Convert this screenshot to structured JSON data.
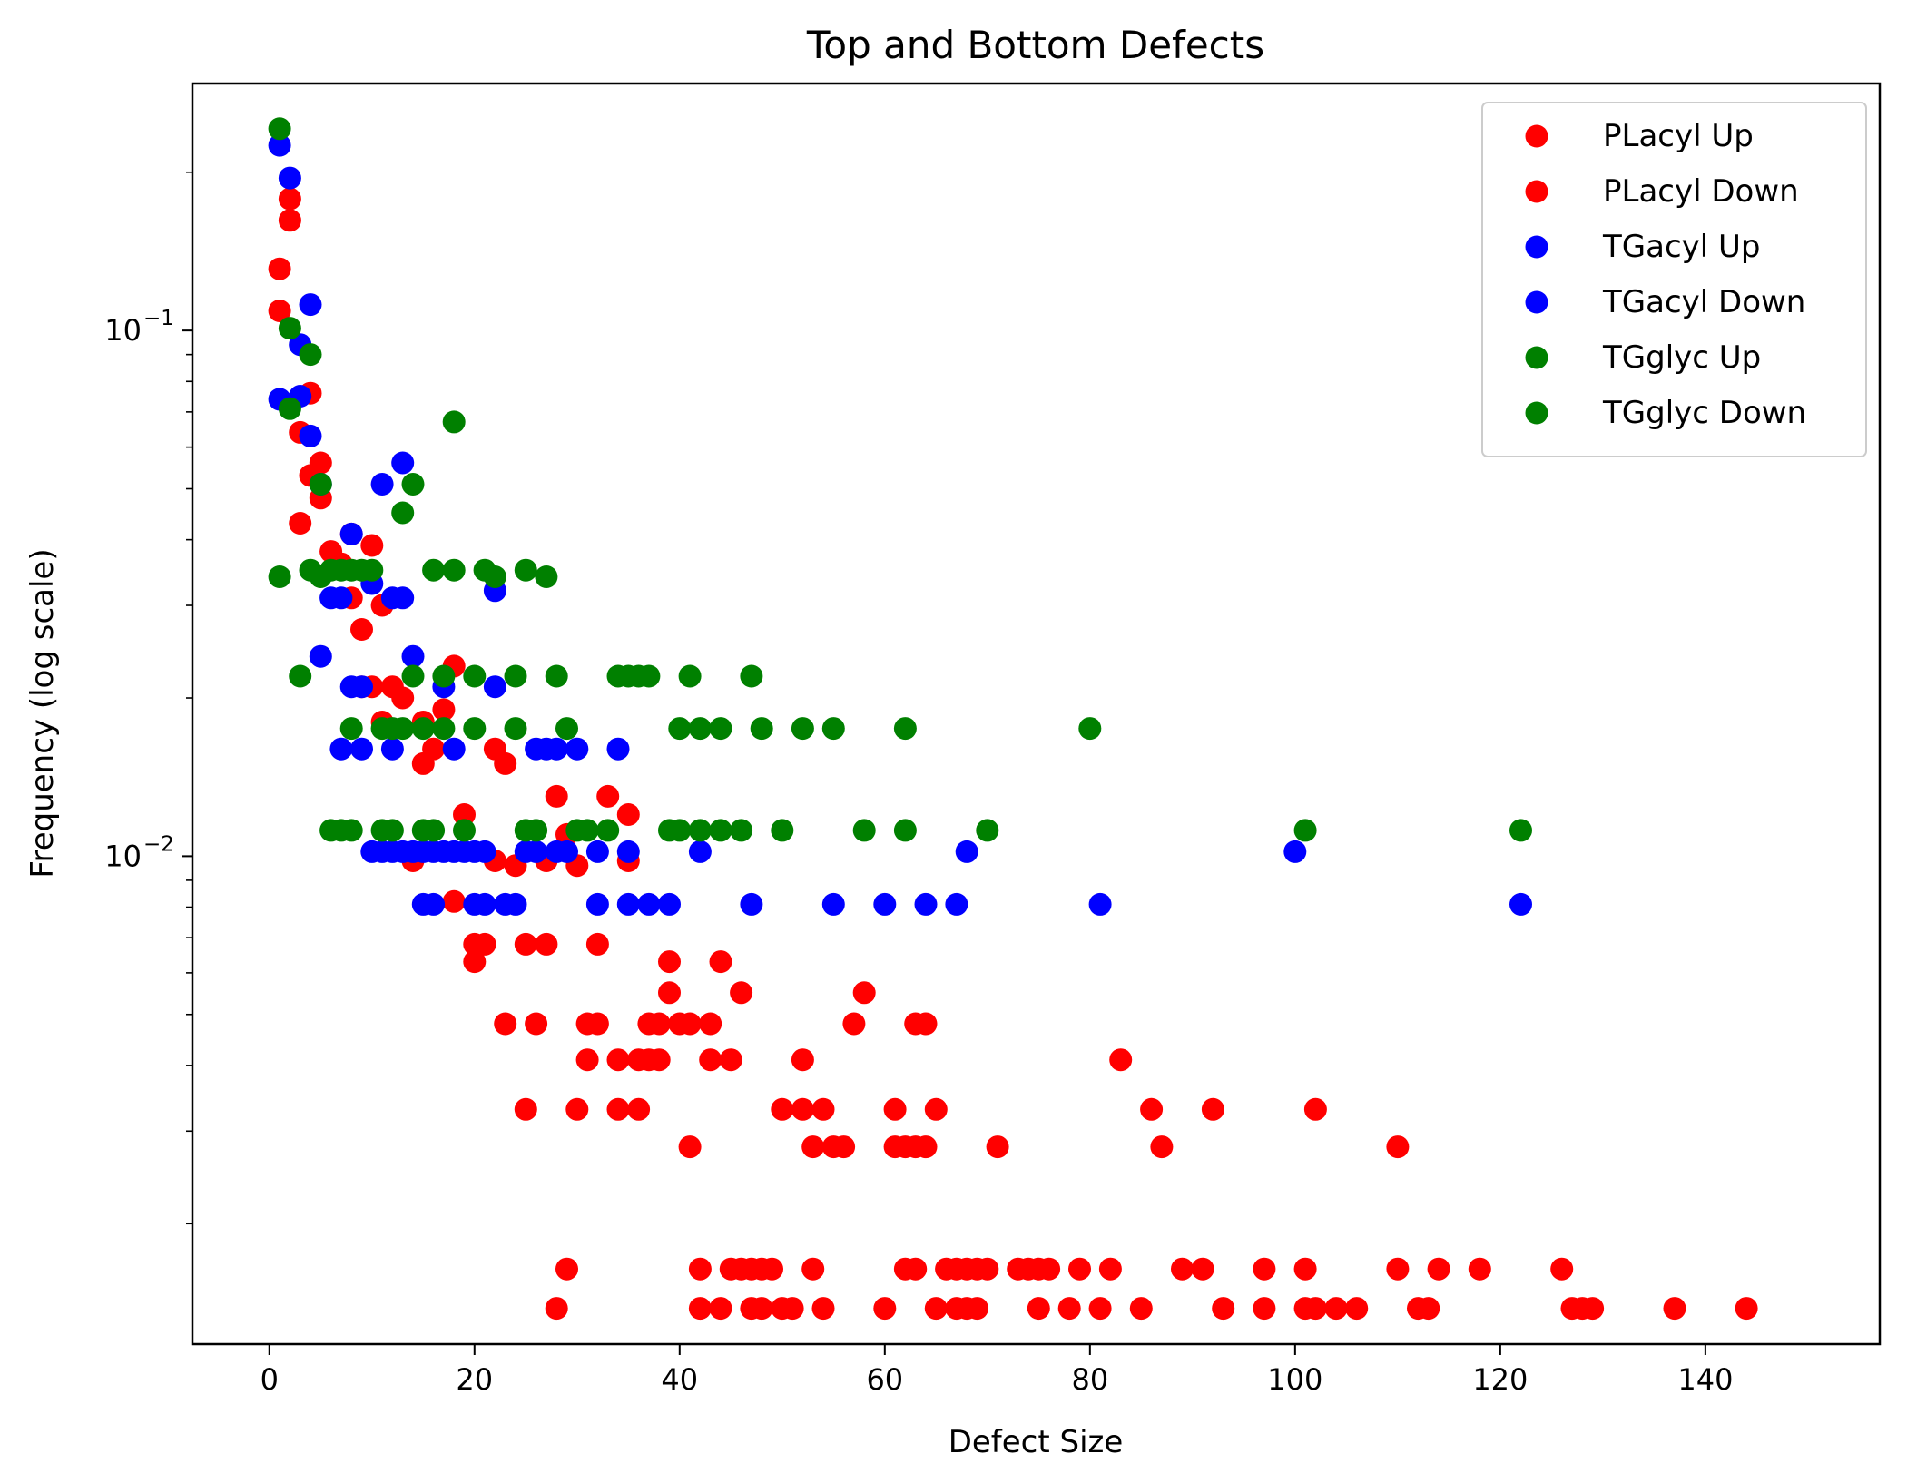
{
  "chart_data": {
    "type": "scatter",
    "title": "Top and Bottom Defects",
    "xlabel": "Defect Size",
    "ylabel": "Frequency (log scale)",
    "xlim": [
      -7.5,
      157
    ],
    "ylim": [
      0.00118,
      0.295
    ],
    "yscale": "log",
    "grid": false,
    "legend_position": "top-right",
    "x_ticks": [
      {
        "value": 0,
        "label": "0"
      },
      {
        "value": 20,
        "label": "20"
      },
      {
        "value": 40,
        "label": "40"
      },
      {
        "value": 60,
        "label": "60"
      },
      {
        "value": 80,
        "label": "80"
      },
      {
        "value": 100,
        "label": "100"
      },
      {
        "value": 120,
        "label": "120"
      },
      {
        "value": 140,
        "label": "140"
      }
    ],
    "y_major_ticks": [
      {
        "value": 0.1,
        "base": "10",
        "exp": "−1"
      },
      {
        "value": 0.01,
        "base": "10",
        "exp": "−2"
      }
    ],
    "y_minor_ticks": [
      0.002,
      0.003,
      0.004,
      0.005,
      0.006,
      0.007,
      0.008,
      0.009,
      0.02,
      0.03,
      0.04,
      0.05,
      0.06,
      0.07,
      0.08,
      0.09,
      0.2
    ],
    "series": [
      {
        "name": "PLacyl Up",
        "color": "#ff0000",
        "points": [
          [
            1,
            0.131
          ],
          [
            1,
            0.109
          ],
          [
            2,
            0.178
          ],
          [
            2,
            0.162
          ],
          [
            3,
            0.064
          ],
          [
            3,
            0.043
          ],
          [
            4,
            0.076
          ],
          [
            4,
            0.053
          ],
          [
            5,
            0.056
          ],
          [
            5,
            0.048
          ],
          [
            6,
            0.038
          ],
          [
            7,
            0.036
          ],
          [
            8,
            0.031
          ],
          [
            8,
            0.041
          ],
          [
            9,
            0.027
          ],
          [
            9,
            0.021
          ],
          [
            10,
            0.039
          ],
          [
            10,
            0.021
          ],
          [
            11,
            0.03
          ],
          [
            11,
            0.018
          ],
          [
            12,
            0.021
          ],
          [
            13,
            0.02
          ],
          [
            14,
            0.0098
          ],
          [
            15,
            0.018
          ],
          [
            15,
            0.015
          ],
          [
            16,
            0.016
          ],
          [
            17,
            0.019
          ],
          [
            18,
            0.023
          ],
          [
            18,
            0.0082
          ],
          [
            19,
            0.012
          ],
          [
            20,
            0.0068
          ],
          [
            20,
            0.0063
          ],
          [
            21,
            0.0068
          ],
          [
            22,
            0.0098
          ],
          [
            22,
            0.016
          ],
          [
            23,
            0.015
          ],
          [
            23,
            0.0048
          ],
          [
            24,
            0.0096
          ],
          [
            25,
            0.0068
          ],
          [
            26,
            0.0048
          ],
          [
            27,
            0.0098
          ],
          [
            27,
            0.0068
          ],
          [
            28,
            0.013
          ],
          [
            29,
            0.011
          ],
          [
            30,
            0.0096
          ],
          [
            31,
            0.0048
          ],
          [
            31,
            0.0041
          ],
          [
            32,
            0.0068
          ],
          [
            32,
            0.0048
          ],
          [
            33,
            0.013
          ],
          [
            34,
            0.0041
          ],
          [
            35,
            0.012
          ],
          [
            35,
            0.0098
          ],
          [
            36,
            0.0041
          ],
          [
            37,
            0.0048
          ],
          [
            37,
            0.0041
          ],
          [
            38,
            0.0048
          ],
          [
            38,
            0.0041
          ],
          [
            39,
            0.0063
          ],
          [
            39,
            0.0055
          ],
          [
            40,
            0.0048
          ],
          [
            41,
            0.0048
          ],
          [
            43,
            0.0048
          ],
          [
            43,
            0.0041
          ],
          [
            44,
            0.0063
          ],
          [
            45,
            0.0041
          ],
          [
            46,
            0.0055
          ],
          [
            50,
            0.0033
          ],
          [
            52,
            0.0041
          ],
          [
            52,
            0.0033
          ],
          [
            54,
            0.0033
          ],
          [
            57,
            0.0048
          ],
          [
            58,
            0.0055
          ],
          [
            61,
            0.0033
          ],
          [
            63,
            0.0048
          ],
          [
            64,
            0.0048
          ],
          [
            65,
            0.0033
          ],
          [
            83,
            0.0041
          ],
          [
            86,
            0.0033
          ],
          [
            92,
            0.0033
          ],
          [
            102,
            0.0033
          ],
          [
            25,
            0.0033
          ],
          [
            30,
            0.0033
          ],
          [
            34,
            0.0033
          ],
          [
            36,
            0.0033
          ],
          [
            41,
            0.0028
          ],
          [
            53,
            0.0028
          ],
          [
            55,
            0.0028
          ],
          [
            56,
            0.0028
          ],
          [
            61,
            0.0028
          ],
          [
            62,
            0.0028
          ],
          [
            63,
            0.0028
          ],
          [
            64,
            0.0028
          ],
          [
            71,
            0.0028
          ],
          [
            87,
            0.0028
          ],
          [
            110,
            0.0028
          ],
          [
            29,
            0.00164
          ],
          [
            42,
            0.00164
          ],
          [
            45,
            0.00164
          ],
          [
            46,
            0.00164
          ],
          [
            47,
            0.00164
          ],
          [
            48,
            0.00164
          ],
          [
            49,
            0.00164
          ],
          [
            53,
            0.00164
          ],
          [
            62,
            0.00164
          ],
          [
            63,
            0.00164
          ],
          [
            66,
            0.00164
          ],
          [
            67,
            0.00164
          ],
          [
            68,
            0.00164
          ],
          [
            69,
            0.00164
          ],
          [
            70,
            0.00164
          ],
          [
            73,
            0.00164
          ],
          [
            74,
            0.00164
          ],
          [
            75,
            0.00164
          ],
          [
            76,
            0.00164
          ],
          [
            79,
            0.00164
          ],
          [
            82,
            0.00164
          ],
          [
            89,
            0.00164
          ],
          [
            91,
            0.00164
          ],
          [
            97,
            0.00164
          ],
          [
            101,
            0.00164
          ],
          [
            110,
            0.00164
          ],
          [
            114,
            0.00164
          ],
          [
            118,
            0.00164
          ],
          [
            126,
            0.00164
          ]
        ]
      },
      {
        "name": "PLacyl Down",
        "color": "#ff0000",
        "points": [
          [
            28,
            0.00138
          ],
          [
            42,
            0.00138
          ],
          [
            44,
            0.00138
          ],
          [
            47,
            0.00138
          ],
          [
            48,
            0.00138
          ],
          [
            50,
            0.00138
          ],
          [
            51,
            0.00138
          ],
          [
            54,
            0.00138
          ],
          [
            60,
            0.00138
          ],
          [
            65,
            0.00138
          ],
          [
            67,
            0.00138
          ],
          [
            68,
            0.00138
          ],
          [
            69,
            0.00138
          ],
          [
            75,
            0.00138
          ],
          [
            78,
            0.00138
          ],
          [
            81,
            0.00138
          ],
          [
            85,
            0.00138
          ],
          [
            93,
            0.00138
          ],
          [
            97,
            0.00138
          ],
          [
            101,
            0.00138
          ],
          [
            102,
            0.00138
          ],
          [
            104,
            0.00138
          ],
          [
            106,
            0.00138
          ],
          [
            112,
            0.00138
          ],
          [
            113,
            0.00138
          ],
          [
            127,
            0.00138
          ],
          [
            128,
            0.00138
          ],
          [
            129,
            0.00138
          ],
          [
            137,
            0.00138
          ],
          [
            144,
            0.00138
          ]
        ]
      },
      {
        "name": "TGacyl Up",
        "color": "#0000ff",
        "points": [
          [
            1,
            0.225
          ],
          [
            2,
            0.195
          ],
          [
            3,
            0.094
          ],
          [
            3,
            0.075
          ],
          [
            4,
            0.112
          ],
          [
            4,
            0.063
          ],
          [
            5,
            0.051
          ],
          [
            5,
            0.024
          ],
          [
            6,
            0.031
          ],
          [
            7,
            0.031
          ],
          [
            8,
            0.041
          ],
          [
            8,
            0.021
          ],
          [
            9,
            0.021
          ],
          [
            9,
            0.016
          ],
          [
            10,
            0.033
          ],
          [
            11,
            0.051
          ],
          [
            12,
            0.031
          ],
          [
            13,
            0.056
          ],
          [
            13,
            0.031
          ],
          [
            14,
            0.024
          ],
          [
            12,
            0.016
          ],
          [
            17,
            0.021
          ],
          [
            18,
            0.016
          ],
          [
            22,
            0.032
          ],
          [
            22,
            0.021
          ],
          [
            26,
            0.016
          ],
          [
            27,
            0.016
          ],
          [
            28,
            0.016
          ],
          [
            30,
            0.016
          ],
          [
            34,
            0.016
          ]
        ]
      },
      {
        "name": "TGacyl Down",
        "color": "#0000ff",
        "points": [
          [
            1,
            0.074
          ],
          [
            7,
            0.016
          ],
          [
            10,
            0.0102
          ],
          [
            11,
            0.0102
          ],
          [
            12,
            0.0102
          ],
          [
            13,
            0.0102
          ],
          [
            14,
            0.0102
          ],
          [
            15,
            0.0102
          ],
          [
            16,
            0.0102
          ],
          [
            17,
            0.0102
          ],
          [
            18,
            0.0102
          ],
          [
            19,
            0.0102
          ],
          [
            20,
            0.0102
          ],
          [
            21,
            0.0102
          ],
          [
            25,
            0.0102
          ],
          [
            26,
            0.0102
          ],
          [
            28,
            0.0102
          ],
          [
            29,
            0.0102
          ],
          [
            32,
            0.0102
          ],
          [
            35,
            0.0102
          ],
          [
            42,
            0.0102
          ],
          [
            68,
            0.0102
          ],
          [
            100,
            0.0102
          ],
          [
            15,
            0.0081
          ],
          [
            16,
            0.0081
          ],
          [
            20,
            0.0081
          ],
          [
            21,
            0.0081
          ],
          [
            23,
            0.0081
          ],
          [
            24,
            0.0081
          ],
          [
            32,
            0.0081
          ],
          [
            35,
            0.0081
          ],
          [
            37,
            0.0081
          ],
          [
            39,
            0.0081
          ],
          [
            47,
            0.0081
          ],
          [
            55,
            0.0081
          ],
          [
            60,
            0.0081
          ],
          [
            64,
            0.0081
          ],
          [
            67,
            0.0081
          ],
          [
            81,
            0.0081
          ],
          [
            122,
            0.0081
          ]
        ]
      },
      {
        "name": "TGglyc Up",
        "color": "#008000",
        "points": [
          [
            1,
            0.242
          ],
          [
            2,
            0.101
          ],
          [
            4,
            0.09
          ],
          [
            2,
            0.071
          ],
          [
            18,
            0.067
          ],
          [
            5,
            0.051
          ],
          [
            14,
            0.051
          ],
          [
            13,
            0.045
          ],
          [
            1,
            0.034
          ],
          [
            4,
            0.035
          ],
          [
            5,
            0.034
          ],
          [
            6,
            0.035
          ],
          [
            7,
            0.035
          ],
          [
            8,
            0.035
          ],
          [
            9,
            0.035
          ],
          [
            10,
            0.035
          ],
          [
            16,
            0.035
          ],
          [
            18,
            0.035
          ],
          [
            21,
            0.035
          ],
          [
            22,
            0.034
          ],
          [
            25,
            0.035
          ],
          [
            27,
            0.034
          ],
          [
            3,
            0.022
          ],
          [
            14,
            0.022
          ],
          [
            17,
            0.022
          ],
          [
            20,
            0.022
          ],
          [
            24,
            0.022
          ],
          [
            28,
            0.022
          ],
          [
            34,
            0.022
          ],
          [
            35,
            0.022
          ],
          [
            36,
            0.022
          ],
          [
            37,
            0.022
          ],
          [
            41,
            0.022
          ],
          [
            47,
            0.022
          ],
          [
            8,
            0.0175
          ],
          [
            11,
            0.0175
          ],
          [
            12,
            0.0175
          ],
          [
            13,
            0.0175
          ],
          [
            15,
            0.0175
          ],
          [
            17,
            0.0175
          ],
          [
            20,
            0.0175
          ],
          [
            24,
            0.0175
          ],
          [
            29,
            0.0175
          ],
          [
            40,
            0.0175
          ],
          [
            42,
            0.0175
          ],
          [
            44,
            0.0175
          ],
          [
            48,
            0.0175
          ],
          [
            52,
            0.0175
          ],
          [
            55,
            0.0175
          ],
          [
            62,
            0.0175
          ],
          [
            80,
            0.0175
          ]
        ]
      },
      {
        "name": "TGglyc Down",
        "color": "#008000",
        "points": [
          [
            6,
            0.0112
          ],
          [
            7,
            0.0112
          ],
          [
            8,
            0.0112
          ],
          [
            11,
            0.0112
          ],
          [
            12,
            0.0112
          ],
          [
            15,
            0.0112
          ],
          [
            16,
            0.0112
          ],
          [
            19,
            0.0112
          ],
          [
            25,
            0.0112
          ],
          [
            26,
            0.0112
          ],
          [
            30,
            0.0112
          ],
          [
            31,
            0.0112
          ],
          [
            33,
            0.0112
          ],
          [
            39,
            0.0112
          ],
          [
            40,
            0.0112
          ],
          [
            42,
            0.0112
          ],
          [
            44,
            0.0112
          ],
          [
            46,
            0.0112
          ],
          [
            50,
            0.0112
          ],
          [
            58,
            0.0112
          ],
          [
            62,
            0.0112
          ],
          [
            70,
            0.0112
          ],
          [
            101,
            0.0112
          ],
          [
            122,
            0.0112
          ]
        ]
      }
    ]
  }
}
